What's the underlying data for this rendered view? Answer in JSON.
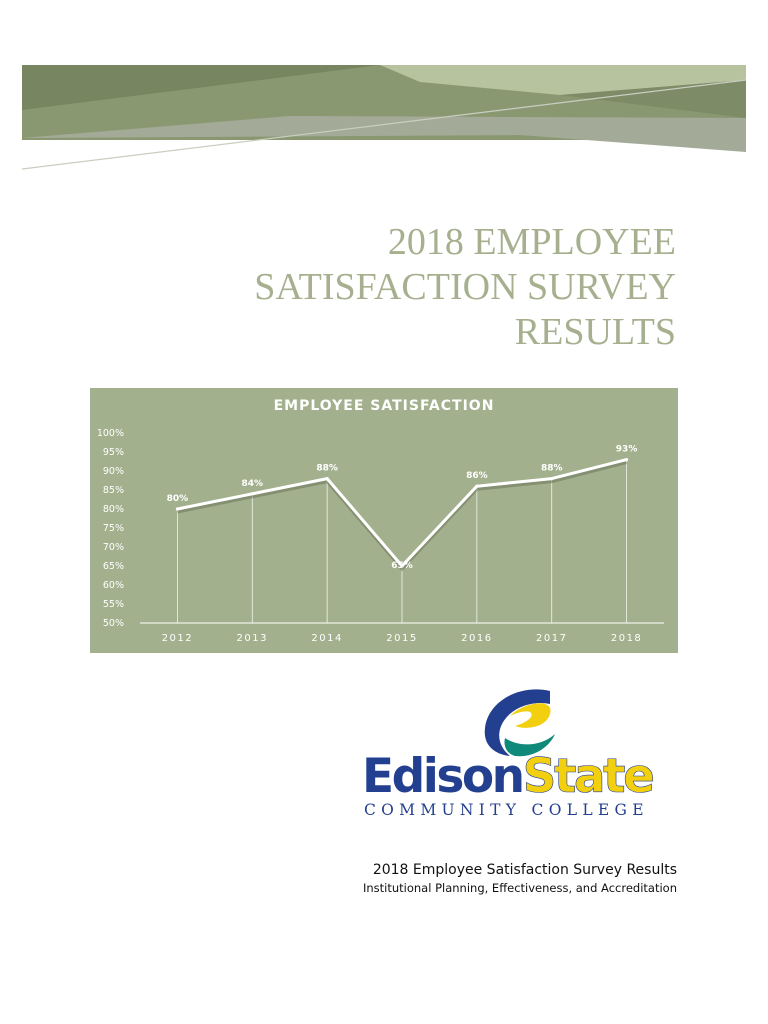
{
  "document": {
    "title_lines": [
      "2018 EMPLOYEE",
      "SATISFACTION SURVEY",
      "RESULTS"
    ]
  },
  "chart_data": {
    "type": "line",
    "title": "EMPLOYEE SATISFACTION",
    "categories": [
      "2012",
      "2013",
      "2014",
      "2015",
      "2016",
      "2017",
      "2018"
    ],
    "values": [
      80,
      84,
      88,
      65,
      86,
      88,
      93
    ],
    "data_labels": [
      "80%",
      "84%",
      "88%",
      "65%",
      "86%",
      "88%",
      "93%"
    ],
    "y_ticks": [
      "50%",
      "55%",
      "60%",
      "65%",
      "70%",
      "75%",
      "80%",
      "85%",
      "90%",
      "95%",
      "100%"
    ],
    "ylim": [
      50,
      100
    ],
    "grid": false,
    "background": "#a3b08d",
    "line_color": "#ffffff"
  },
  "logo": {
    "line1_left": "Edison",
    "line1_right": "State",
    "line2": "COMMUNITY COLLEGE",
    "colors": {
      "navy": "#233f8f",
      "yellow": "#f2d00f",
      "teal": "#0f8a7a"
    }
  },
  "footer": {
    "line1": "2018 Employee Satisfaction Survey Results",
    "line2": "Institutional Planning, Effectiveness, and Accreditation"
  }
}
